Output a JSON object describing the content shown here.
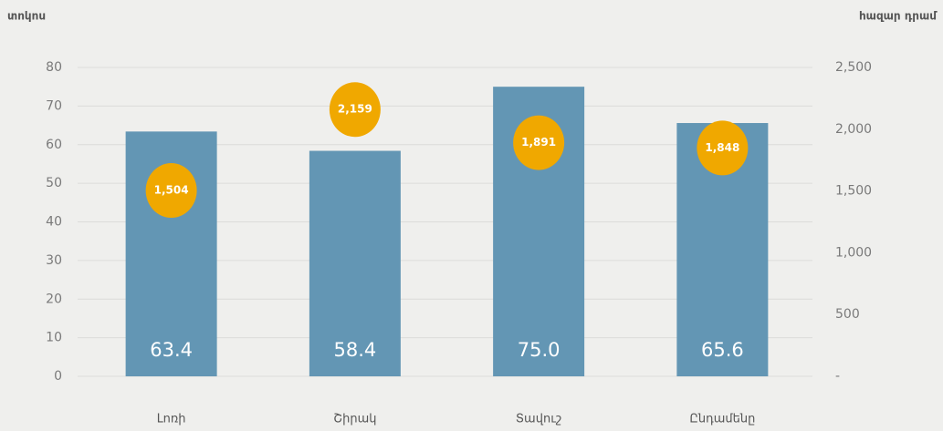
{
  "chart_data": {
    "type": "bar",
    "ylabel": "տոկոս",
    "y2label": "հազար դրամ",
    "categories": [
      "Լոռի",
      "Շիրակ",
      "Տավուշ",
      "Ընդամենը"
    ],
    "series": [
      {
        "type": "bar",
        "color": "#6396b4",
        "values": [
          63.4,
          58.4,
          75.0,
          65.6
        ],
        "value_labels": [
          "63.4",
          "58.4",
          "75.0",
          "65.6"
        ]
      },
      {
        "type": "scatter",
        "axis": "y2",
        "color": "#f0a800",
        "values": [
          1504,
          2159,
          1891,
          1848
        ],
        "value_labels": [
          "1,504",
          "2,159",
          "1,891",
          "1,848"
        ]
      }
    ],
    "ylim": [
      0,
      80
    ],
    "yticks": [
      0,
      10,
      20,
      30,
      40,
      50,
      60,
      70,
      80
    ],
    "y2lim": [
      0,
      2500
    ],
    "y2ticks": [
      {
        "value": 0,
        "label": "-"
      },
      500,
      {
        "value": 1000,
        "label": "1,000"
      },
      {
        "value": 1500,
        "label": "1,500"
      },
      {
        "value": 2000,
        "label": "2,000"
      },
      {
        "value": 2500,
        "label": "2,500"
      }
    ],
    "grid": true
  }
}
